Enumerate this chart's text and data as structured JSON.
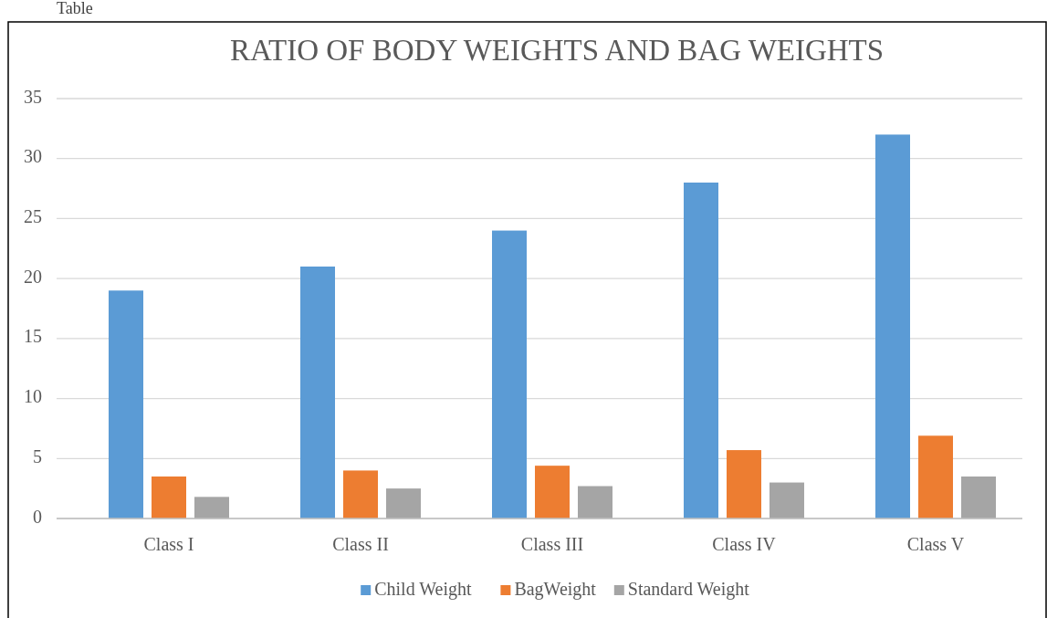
{
  "chart_data": {
    "type": "bar",
    "title": "RATIO OF BODY WEIGHTS AND BAG WEIGHTS",
    "annotations": [
      "Table"
    ],
    "categories": [
      "Class I",
      "Class II",
      "Class III",
      "Class IV",
      "Class V"
    ],
    "series": [
      {
        "name": "Child Weight",
        "color": "#5b9bd5",
        "values": [
          19,
          21,
          24,
          28,
          32
        ]
      },
      {
        "name": "BagWeight",
        "color": "#ed7d31",
        "values": [
          3.5,
          4,
          4.4,
          5.7,
          6.9
        ]
      },
      {
        "name": "Standard Weight",
        "color": "#a5a5a5",
        "values": [
          1.8,
          2.5,
          2.7,
          3,
          3.5
        ]
      }
    ],
    "ylim": [
      0,
      35
    ],
    "yticks": [
      0,
      5,
      10,
      15,
      20,
      25,
      30,
      35
    ],
    "grid": "y",
    "legend": "bottom"
  }
}
